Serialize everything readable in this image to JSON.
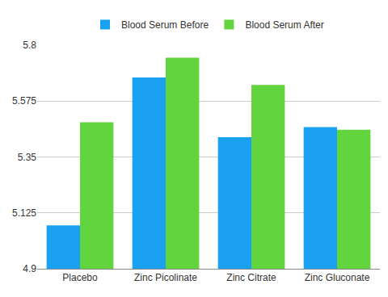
{
  "chart_data": {
    "type": "bar",
    "categories": [
      "Placebo",
      "Zinc Picolinate",
      "Zinc Citrate",
      "Zinc Gluconate"
    ],
    "series": [
      {
        "name": "Blood Serum Before",
        "color": "#1ba1f2",
        "values": [
          5.075,
          5.67,
          5.43,
          5.47
        ]
      },
      {
        "name": "Blood Serum After",
        "color": "#62d43d",
        "values": [
          5.49,
          5.75,
          5.64,
          5.46
        ]
      }
    ],
    "ylim": [
      4.9,
      5.8
    ],
    "yticks": [
      4.9,
      5.125,
      5.35,
      5.575,
      5.8
    ],
    "grid": true,
    "legend": "top"
  }
}
